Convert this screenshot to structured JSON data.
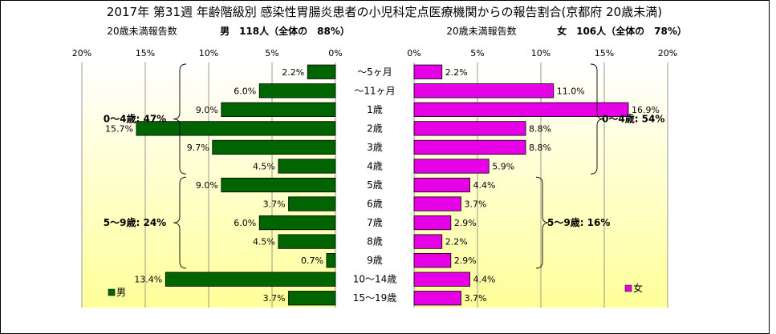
{
  "chart_data": {
    "type": "bar",
    "title": "2017年 第31週 年齢階級別 感染性胃腸炎患者の小児科定点医療機関からの報告割合(京都府 20歳未満)",
    "categories": [
      "～5ヶ月",
      "～11ヶ月",
      "1歳",
      "2歳",
      "3歳",
      "4歳",
      "5歳",
      "6歳",
      "7歳",
      "8歳",
      "9歳",
      "10～14歳",
      "15～19歳"
    ],
    "axis_max": 20,
    "axis_ticks": [
      "20%",
      "15%",
      "10%",
      "5%",
      "0%"
    ],
    "axis_ticks_right": [
      "0%",
      "5%",
      "10%",
      "15%",
      "20%"
    ],
    "series": [
      {
        "name": "男",
        "header_label": "20歳未満報告数",
        "header_value": "男　118人（全体の　88%）",
        "color": "#006400",
        "values": [
          2.2,
          6.0,
          9.0,
          15.7,
          9.7,
          4.5,
          9.0,
          3.7,
          6.0,
          4.5,
          0.7,
          13.4,
          3.7
        ],
        "labels": [
          "2.2%",
          "6.0%",
          "9.0%",
          "15.7%",
          "9.7%",
          "4.5%",
          "9.0%",
          "3.7%",
          "6.0%",
          "4.5%",
          "0.7%",
          "13.4%",
          "3.7%"
        ],
        "groups": [
          {
            "label": "0～4歳: 47%",
            "from": 0,
            "to": 5
          },
          {
            "label": "5～9歳: 24%",
            "from": 6,
            "to": 10
          }
        ]
      },
      {
        "name": "女",
        "header_label": "20歳未満報告数",
        "header_value": "女　106人（全体の　78%）",
        "color": "#e600e6",
        "values": [
          2.2,
          11.0,
          16.9,
          8.8,
          8.8,
          5.9,
          4.4,
          3.7,
          2.9,
          2.2,
          2.9,
          4.4,
          3.7
        ],
        "labels": [
          "2.2%",
          "11.0%",
          "16.9%",
          "8.8%",
          "8.8%",
          "5.9%",
          "4.4%",
          "3.7%",
          "2.9%",
          "2.2%",
          "2.9%",
          "4.4%",
          "3.7%"
        ],
        "groups": [
          {
            "label": "0～4歳: 54%",
            "from": 0,
            "to": 5
          },
          {
            "label": "5～9歳: 16%",
            "from": 6,
            "to": 10
          }
        ]
      }
    ]
  }
}
